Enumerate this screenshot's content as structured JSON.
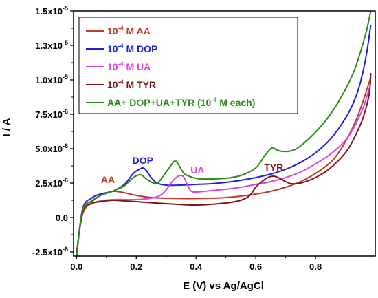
{
  "chart_data": {
    "type": "line",
    "title": "",
    "xlabel": "E (V) vs Ag/AgCl",
    "ylabel": "I / A",
    "xlim": [
      -0.01,
      1.0
    ],
    "ylim": [
      -2.8e-06,
      1.5e-05
    ],
    "grid": false,
    "legend_position": "top-left",
    "x_ticks": [
      {
        "value": 0.0,
        "label": "0.0"
      },
      {
        "value": 0.2,
        "label": "0.2"
      },
      {
        "value": 0.4,
        "label": "0.4"
      },
      {
        "value": 0.6,
        "label": "0.6"
      },
      {
        "value": 0.8,
        "label": "0.8"
      }
    ],
    "y_ticks": [
      {
        "value": -2.5e-06,
        "mant": "-2.5x10",
        "exp": "-6"
      },
      {
        "value": 0.0,
        "mant": "0.0",
        "exp": ""
      },
      {
        "value": 2.5e-06,
        "mant": "2.5x10",
        "exp": "-6"
      },
      {
        "value": 5e-06,
        "mant": "5.0x10",
        "exp": "-6"
      },
      {
        "value": 7.5e-06,
        "mant": "7.5x10",
        "exp": "-6"
      },
      {
        "value": 1e-05,
        "mant": "1.0x10",
        "exp": "-5"
      },
      {
        "value": 1.25e-05,
        "mant": "1.3x10",
        "exp": "-5"
      },
      {
        "value": 1.5e-05,
        "mant": "1.5x10",
        "exp": "-5"
      }
    ],
    "series": [
      {
        "name": "10-4 M AA",
        "legend_parts": [
          "10",
          "-4",
          " M AA"
        ],
        "color": "#c0392b",
        "x": [
          0.0,
          0.02,
          0.05,
          0.08,
          0.11,
          0.13,
          0.16,
          0.2,
          0.25,
          0.3,
          0.35,
          0.4,
          0.45,
          0.5,
          0.55,
          0.6,
          0.65,
          0.7,
          0.75,
          0.8,
          0.85,
          0.88,
          0.91,
          0.94,
          0.96,
          0.975,
          0.985
        ],
        "y": [
          -2.6e-06,
          2e-07,
          1.1e-06,
          1.6e-06,
          1.85e-06,
          1.9e-06,
          1.8e-06,
          1.6e-06,
          1.45e-06,
          1.4e-06,
          1.38e-06,
          1.38e-06,
          1.4e-06,
          1.45e-06,
          1.55e-06,
          1.7e-06,
          1.9e-06,
          2.2e-06,
          2.6e-06,
          3.2e-06,
          4e-06,
          4.8e-06,
          5.9e-06,
          7.3e-06,
          8.5e-06,
          9.5e-06,
          1.02e-05
        ]
      },
      {
        "name": "10-4 M DOP",
        "legend_parts": [
          "10",
          "-4",
          " M DOP"
        ],
        "color": "#1f1fd6",
        "x": [
          0.0,
          0.02,
          0.05,
          0.08,
          0.12,
          0.16,
          0.19,
          0.21,
          0.22,
          0.23,
          0.25,
          0.27,
          0.3,
          0.35,
          0.4,
          0.45,
          0.5,
          0.55,
          0.6,
          0.65,
          0.7,
          0.75,
          0.8,
          0.85,
          0.9,
          0.93,
          0.95,
          0.97,
          0.985
        ],
        "y": [
          -2.9e-06,
          6e-07,
          1.4e-06,
          1.7e-06,
          1.9e-06,
          2.4e-06,
          3.2e-06,
          3.5e-06,
          3.6e-06,
          3.5e-06,
          2.9e-06,
          2.5e-06,
          2.35e-06,
          2.35e-06,
          2.4e-06,
          2.45e-06,
          2.55e-06,
          2.7e-06,
          2.9e-06,
          3.15e-06,
          3.5e-06,
          4e-06,
          4.7e-06,
          5.7e-06,
          7.2e-06,
          8.5e-06,
          9.8e-06,
          1.18e-05,
          1.4e-05
        ]
      },
      {
        "name": "10-4 M UA",
        "legend_parts": [
          "10",
          "-4",
          " M UA"
        ],
        "color": "#e040e0",
        "x": [
          0.0,
          0.02,
          0.05,
          0.08,
          0.12,
          0.16,
          0.2,
          0.25,
          0.28,
          0.3,
          0.32,
          0.34,
          0.35,
          0.36,
          0.38,
          0.4,
          0.45,
          0.5,
          0.55,
          0.6,
          0.65,
          0.7,
          0.75,
          0.8,
          0.85,
          0.9,
          0.93,
          0.96,
          0.98
        ],
        "y": [
          -2.7e-06,
          4e-07,
          1e-06,
          1.2e-06,
          1.3e-06,
          1.3e-06,
          1.3e-06,
          1.4e-06,
          1.6e-06,
          2e-06,
          2.6e-06,
          3e-06,
          3.05e-06,
          2.9e-06,
          2e-06,
          1.85e-06,
          1.95e-06,
          2.05e-06,
          2.2e-06,
          2.4e-06,
          2.6e-06,
          2.9e-06,
          3.3e-06,
          3.9e-06,
          4.6e-06,
          5.6e-06,
          6.6e-06,
          8e-06,
          9.4e-06
        ]
      },
      {
        "name": "10-4 M TYR",
        "legend_parts": [
          "10",
          "-4",
          " M TYR"
        ],
        "color": "#7a1616",
        "x": [
          0.0,
          0.02,
          0.05,
          0.08,
          0.12,
          0.16,
          0.2,
          0.3,
          0.4,
          0.5,
          0.55,
          0.58,
          0.6,
          0.62,
          0.64,
          0.66,
          0.68,
          0.7,
          0.72,
          0.75,
          0.8,
          0.85,
          0.9,
          0.93,
          0.96,
          0.98,
          0.985
        ],
        "y": [
          -2.7e-06,
          4e-07,
          1e-06,
          1.15e-06,
          1.25e-06,
          1.2e-06,
          1.15e-06,
          1e-06,
          9e-07,
          1.05e-06,
          1.25e-06,
          1.6e-06,
          2.2e-06,
          2.6e-06,
          2.9e-06,
          3e-06,
          2.85e-06,
          2.6e-06,
          2.45e-06,
          2.5e-06,
          2.9e-06,
          3.6e-06,
          4.7e-06,
          5.8e-06,
          7.3e-06,
          9e-06,
          1.05e-05
        ]
      },
      {
        "name": "AA+ DOP+UA+TYR (10-4 M each)",
        "legend_parts": [
          "AA+ DOP+UA+TYR (10",
          "-4",
          " M each)"
        ],
        "color": "#2a8a1a",
        "x": [
          0.0,
          0.02,
          0.05,
          0.08,
          0.12,
          0.16,
          0.19,
          0.21,
          0.22,
          0.24,
          0.27,
          0.3,
          0.32,
          0.33,
          0.34,
          0.36,
          0.39,
          0.42,
          0.45,
          0.5,
          0.55,
          0.6,
          0.63,
          0.65,
          0.66,
          0.67,
          0.69,
          0.72,
          0.75,
          0.8,
          0.85,
          0.9,
          0.93,
          0.95,
          0.97,
          0.98,
          0.985
        ],
        "y": [
          -2.8e-06,
          5e-07,
          1.2e-06,
          1.6e-06,
          1.9e-06,
          2.3e-06,
          2.9e-06,
          3.1e-06,
          3.05e-06,
          2.7e-06,
          2.5e-06,
          3.3e-06,
          3.9e-06,
          4.1e-06,
          3.9e-06,
          3.2e-06,
          2.9e-06,
          2.8e-06,
          2.8e-06,
          2.85e-06,
          3.05e-06,
          3.6e-06,
          4.5e-06,
          5e-06,
          5.05e-06,
          4.9e-06,
          4.8e-06,
          4.85e-06,
          5.2e-06,
          6.2e-06,
          7.5e-06,
          9.3e-06,
          1.07e-05,
          1.2e-05,
          1.35e-05,
          1.45e-05,
          1.5e-05
        ]
      }
    ],
    "annotations": [
      {
        "text": "AA",
        "x": 0.105,
        "y": 2.5e-06,
        "color": "#c0392b"
      },
      {
        "text": "DOP",
        "x": 0.222,
        "y": 3.9e-06,
        "color": "#1f1fd6"
      },
      {
        "text": "UA",
        "x": 0.405,
        "y": 3.2e-06,
        "color": "#e040e0"
      },
      {
        "text": "TYR",
        "x": 0.66,
        "y": 3.4e-06,
        "color": "#7a1616"
      }
    ]
  }
}
